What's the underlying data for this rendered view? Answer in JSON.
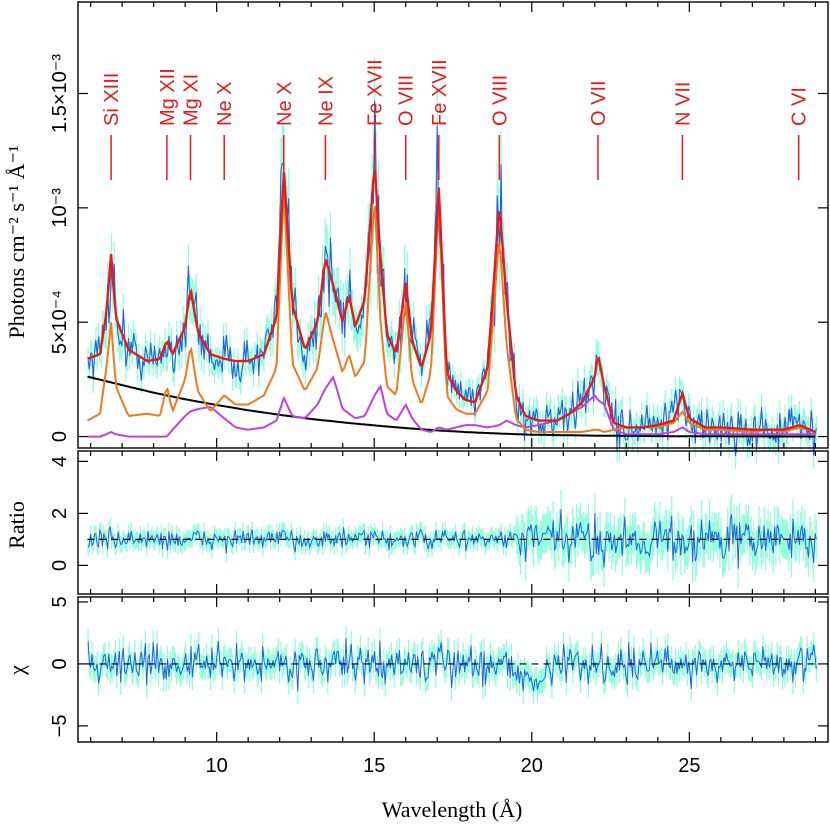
{
  "chart_data": {
    "type": "line",
    "xlabel": "Wavelength (Å)",
    "xlim": [
      5.6,
      29.4
    ],
    "x_ticks": [
      {
        "value": 10,
        "label": "10"
      },
      {
        "value": 15,
        "label": "15"
      },
      {
        "value": 20,
        "label": "20"
      },
      {
        "value": 25,
        "label": "25"
      }
    ],
    "colors": {
      "data": "#1e64dc",
      "error": "#7fffd4",
      "total_model": "#e41a1c",
      "orange_component": "#f07820",
      "magenta_component": "#c040e0",
      "continuum": "#000000",
      "line_labels": "#e41a1c"
    },
    "line_ids": [
      {
        "label": "Si XIII",
        "wavelength": 6.65
      },
      {
        "label": "Mg XII",
        "wavelength": 8.42
      },
      {
        "label": "Mg XI",
        "wavelength": 9.17
      },
      {
        "label": "Ne X",
        "wavelength": 10.24
      },
      {
        "label": "Ne X",
        "wavelength": 12.13
      },
      {
        "label": "Ne IX",
        "wavelength": 13.45
      },
      {
        "label": "Fe XVII",
        "wavelength": 15.01
      },
      {
        "label": "O VIII",
        "wavelength": 16.0
      },
      {
        "label": "Fe XVII",
        "wavelength": 17.05
      },
      {
        "label": "O VIII",
        "wavelength": 18.97
      },
      {
        "label": "O VII",
        "wavelength": 22.1
      },
      {
        "label": "N VII",
        "wavelength": 24.78
      },
      {
        "label": "C VI",
        "wavelength": 28.47
      }
    ],
    "panels": [
      {
        "name": "spectrum",
        "ylabel": "Photons cm⁻² s⁻¹ Å⁻¹",
        "ylim": [
          -5e-05,
          0.0019
        ],
        "y_ticks": [
          {
            "value": 0,
            "label": "0"
          },
          {
            "value": 0.0005,
            "label": "5×10⁻⁴"
          },
          {
            "value": 0.001,
            "label": "10⁻³"
          },
          {
            "value": 0.0015,
            "label": "1.5×10⁻³"
          }
        ],
        "series": [
          {
            "name": "total model",
            "x": [
              5.9,
              6.3,
              6.5,
              6.65,
              6.8,
              7.2,
              7.8,
              8.2,
              8.42,
              8.6,
              9.0,
              9.17,
              9.4,
              9.8,
              10.24,
              10.6,
              11.0,
              11.5,
              11.9,
              12.13,
              12.4,
              12.8,
              13.2,
              13.45,
              13.7,
              14.0,
              14.2,
              14.4,
              14.7,
              15.01,
              15.2,
              15.4,
              15.7,
              16.0,
              16.2,
              16.5,
              16.8,
              17.05,
              17.3,
              17.6,
              17.9,
              18.2,
              18.6,
              18.97,
              19.2,
              19.5,
              19.8,
              20.2,
              20.8,
              21.2,
              21.6,
              22.0,
              22.1,
              22.3,
              22.6,
              23.0,
              23.5,
              24.0,
              24.5,
              24.78,
              25.0,
              25.5,
              26.0,
              27.0,
              27.5,
              28.0,
              28.5,
              29.0
            ],
            "y": [
              0.00034,
              0.00036,
              0.00054,
              0.0008,
              0.00052,
              0.00038,
              0.00033,
              0.00034,
              0.00042,
              0.00036,
              0.00048,
              0.00065,
              0.00046,
              0.00036,
              0.00034,
              0.00033,
              0.00033,
              0.00036,
              0.00052,
              0.00117,
              0.00058,
              0.00038,
              0.0005,
              0.00078,
              0.00066,
              0.0005,
              0.00062,
              0.00048,
              0.0006,
              0.0012,
              0.00078,
              0.00045,
              0.00036,
              0.00068,
              0.00042,
              0.0003,
              0.00045,
              0.0011,
              0.00028,
              0.0002,
              0.00016,
              0.00015,
              0.0003,
              0.00102,
              0.0006,
              0.00018,
              9e-05,
              7e-05,
              7e-05,
              0.0001,
              0.00015,
              0.00026,
              0.00036,
              0.00022,
              6e-05,
              4e-05,
              4e-05,
              5e-05,
              7e-05,
              0.00019,
              8e-05,
              4e-05,
              4e-05,
              3e-05,
              3e-05,
              3e-05,
              5e-05,
              2e-05
            ]
          },
          {
            "name": "orange component",
            "x": [
              5.9,
              6.3,
              6.5,
              6.65,
              6.8,
              7.2,
              7.8,
              8.2,
              8.42,
              8.6,
              9.0,
              9.17,
              9.4,
              9.8,
              10.24,
              10.6,
              11.0,
              11.5,
              11.9,
              12.13,
              12.4,
              12.8,
              13.2,
              13.45,
              13.7,
              14.0,
              14.2,
              14.4,
              14.7,
              15.01,
              15.2,
              15.4,
              15.7,
              16.0,
              16.2,
              16.5,
              16.8,
              17.05,
              17.3,
              17.6,
              17.9,
              18.2,
              18.6,
              18.97,
              19.2,
              19.5,
              19.8,
              20.2,
              20.8,
              21.2,
              21.6,
              22.0,
              22.1,
              22.3,
              22.6,
              23.0,
              23.5,
              24.0,
              24.5,
              24.78,
              25.0,
              25.5,
              26.0,
              27.0,
              27.5,
              28.0,
              28.5,
              29.0
            ],
            "y": [
              7e-05,
              0.0001,
              0.0003,
              0.0005,
              0.00022,
              9e-05,
              0.0001,
              9e-05,
              0.00022,
              0.00011,
              0.00025,
              0.0004,
              0.0002,
              0.00011,
              0.00018,
              0.00014,
              0.00014,
              0.00018,
              0.0003,
              0.0011,
              0.00032,
              0.0002,
              0.0003,
              0.00055,
              0.00042,
              0.00028,
              0.00036,
              0.00026,
              0.00033,
              0.00105,
              0.0005,
              0.00022,
              0.00018,
              0.0006,
              0.00025,
              0.00014,
              0.00028,
              0.00105,
              0.00018,
              0.00012,
              0.0001,
              0.0001,
              0.0002,
              0.00088,
              0.0004,
              8e-05,
              3e-05,
              2e-05,
              2e-05,
              2e-05,
              2e-05,
              3e-05,
              3e-05,
              2e-05,
              3e-05,
              4e-05,
              4e-05,
              4e-05,
              6e-05,
              0.00011,
              6e-05,
              3e-05,
              3e-05,
              2e-05,
              3e-05,
              2e-05,
              4e-05,
              2e-05
            ]
          },
          {
            "name": "magenta component",
            "x": [
              5.9,
              6.3,
              6.5,
              6.65,
              6.8,
              7.2,
              7.8,
              8.2,
              8.42,
              8.6,
              9.0,
              9.17,
              9.4,
              9.8,
              10.24,
              10.6,
              11.0,
              11.5,
              11.9,
              12.13,
              12.4,
              12.8,
              13.2,
              13.45,
              13.7,
              14.0,
              14.2,
              14.4,
              14.7,
              15.01,
              15.2,
              15.4,
              15.7,
              16.0,
              16.2,
              16.5,
              16.8,
              17.05,
              17.3,
              17.6,
              17.9,
              18.2,
              18.6,
              18.97,
              19.2,
              19.5,
              19.8,
              20.2,
              20.8,
              21.2,
              21.6,
              22.0,
              22.1,
              22.3,
              22.6,
              23.0,
              23.5,
              24.0,
              24.5,
              24.78,
              25.0,
              25.5,
              26.0,
              27.0,
              27.5,
              28.0,
              28.5,
              29.0
            ],
            "y": [
              0.0,
              0.0,
              1e-05,
              2e-05,
              1e-05,
              0.0,
              0.0,
              0.0,
              0.0,
              3e-05,
              9e-05,
              0.00011,
              0.00012,
              0.00013,
              8e-05,
              4e-05,
              3e-05,
              4e-05,
              7e-05,
              0.00017,
              9e-05,
              8e-05,
              0.00014,
              0.00021,
              0.00026,
              0.00012,
              0.0001,
              8e-05,
              9e-05,
              0.00018,
              0.00022,
              0.0001,
              7e-05,
              0.00014,
              8e-05,
              3e-05,
              2e-05,
              4e-05,
              3e-05,
              4e-05,
              5e-05,
              5e-05,
              4e-05,
              5e-05,
              7e-05,
              5e-05,
              4e-05,
              5e-05,
              7e-05,
              0.0001,
              0.00013,
              0.00018,
              0.00016,
              0.00014,
              3e-05,
              1e-05,
              1e-05,
              1e-05,
              2e-05,
              4e-05,
              2e-05,
              1e-05,
              1e-05,
              1e-05,
              1e-05,
              1e-05,
              1e-05,
              1e-05
            ]
          },
          {
            "name": "continuum",
            "x": [
              5.9,
              7,
              8,
              9,
              10,
              11,
              12,
              13,
              14,
              15,
              16,
              17,
              18,
              19,
              20,
              22,
              24,
              26,
              29
            ],
            "y": [
              0.000262,
              0.000225,
              0.000192,
              0.000163,
              0.000138,
              0.000115,
              9.5e-05,
              7.7e-05,
              6.2e-05,
              4.9e-05,
              3.7e-05,
              2.7e-05,
              1.9e-05,
              1.3e-05,
              8e-06,
              4e-06,
              2e-06,
              1e-06,
              0.0
            ]
          }
        ]
      },
      {
        "name": "ratio",
        "ylabel": "Ratio",
        "ylim": [
          -1.1,
          4.4
        ],
        "y_ticks": [
          {
            "value": 0,
            "label": "0"
          },
          {
            "value": 2,
            "label": "2"
          },
          {
            "value": 4,
            "label": "4"
          }
        ],
        "reference_line": 1
      },
      {
        "name": "residuals",
        "ylabel": "χ",
        "ylim": [
          -6.3,
          5.4
        ],
        "y_ticks": [
          {
            "value": -5,
            "label": "−5"
          },
          {
            "value": 0,
            "label": "0"
          },
          {
            "value": 5,
            "label": "5"
          }
        ],
        "reference_line": 0
      }
    ]
  }
}
